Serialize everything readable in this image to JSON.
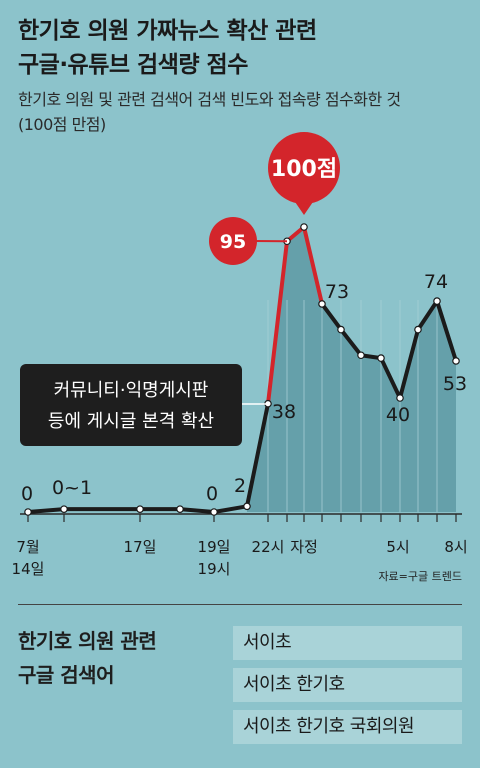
{
  "title": [
    "한기호 의원 가짜뉴스 확산 관련",
    "구글·유튜브 검색량 점수"
  ],
  "subtitle": [
    "한기호 의원 및 관련 검색어 검색 빈도와 접속량 점수화한 것",
    "(100점 만점)"
  ],
  "chart_data": {
    "type": "line",
    "title": "한기호 의원 가짜뉴스 확산 관련 구글·유튜브 검색량 점수",
    "ylim": [
      0,
      100
    ],
    "series": [
      {
        "name": "",
        "values": [
          0,
          1,
          1,
          1,
          0,
          2,
          38,
          95,
          100,
          73,
          64,
          55,
          54,
          40,
          64,
          74,
          53
        ]
      }
    ],
    "data_labels": [
      "0",
      "0~1",
      "0",
      "2",
      "38",
      "95",
      "100점",
      "73",
      "40",
      "74",
      "53"
    ],
    "x_tick_labels": [
      "7월\n14일",
      "17일",
      "19일\n19시",
      "22시",
      "자정",
      "5시",
      "8시"
    ],
    "annotation": "커뮤니티·익명게시판\n등에 게시글 본격 확산",
    "colors": {
      "line": "#1b1b1b",
      "peak_line": "#d3252b",
      "area": "#5e9aa4",
      "bubble": "#d3252b",
      "callout": "#1e1e1e"
    }
  },
  "source": "자료=구글 트렌드",
  "keywords": {
    "title": [
      "한기호 의원 관련",
      "구글 검색어"
    ],
    "items": [
      "서이초",
      "서이초 한기호",
      "서이초 한기호 국회의원"
    ]
  }
}
